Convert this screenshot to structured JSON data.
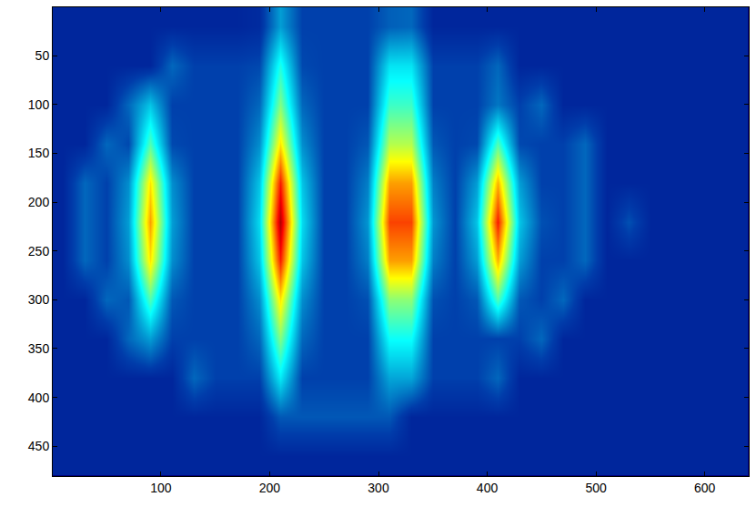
{
  "chart_data": {
    "type": "heatmap",
    "x": [
      10,
      30,
      50,
      70,
      90,
      110,
      130,
      150,
      170,
      190,
      210,
      230,
      250,
      270,
      290,
      310,
      330,
      350,
      370,
      390,
      410,
      430,
      450,
      470,
      490,
      510,
      530,
      550,
      570,
      590,
      610,
      630
    ],
    "y": [
      20,
      60,
      100,
      140,
      180,
      220,
      260,
      300,
      340,
      380,
      420,
      460
    ],
    "z": [
      [
        0.08,
        0.08,
        0.08,
        0.08,
        0.08,
        0.08,
        0.08,
        0.08,
        0.08,
        0.09,
        0.25,
        0.13,
        0.13,
        0.13,
        0.13,
        0.17,
        0.18,
        0.08,
        0.08,
        0.08,
        0.08,
        0.08,
        0.08,
        0.08,
        0.08,
        0.08,
        0.08,
        0.08,
        0.08,
        0.08,
        0.08,
        0.08
      ],
      [
        0.08,
        0.08,
        0.08,
        0.08,
        0.08,
        0.18,
        0.13,
        0.13,
        0.13,
        0.14,
        0.4,
        0.14,
        0.13,
        0.13,
        0.13,
        0.34,
        0.34,
        0.13,
        0.13,
        0.13,
        0.18,
        0.08,
        0.08,
        0.08,
        0.08,
        0.08,
        0.08,
        0.08,
        0.08,
        0.08,
        0.08,
        0.08
      ],
      [
        0.08,
        0.08,
        0.08,
        0.18,
        0.3,
        0.13,
        0.13,
        0.13,
        0.13,
        0.18,
        0.5,
        0.18,
        0.13,
        0.13,
        0.13,
        0.43,
        0.43,
        0.13,
        0.13,
        0.13,
        0.2,
        0.13,
        0.18,
        0.08,
        0.08,
        0.08,
        0.08,
        0.08,
        0.08,
        0.08,
        0.08,
        0.08
      ],
      [
        0.08,
        0.08,
        0.18,
        0.14,
        0.45,
        0.14,
        0.13,
        0.13,
        0.13,
        0.23,
        0.65,
        0.23,
        0.13,
        0.13,
        0.16,
        0.55,
        0.55,
        0.16,
        0.13,
        0.14,
        0.45,
        0.14,
        0.13,
        0.13,
        0.18,
        0.08,
        0.08,
        0.08,
        0.08,
        0.08,
        0.08,
        0.08
      ],
      [
        0.08,
        0.18,
        0.13,
        0.23,
        0.65,
        0.23,
        0.13,
        0.13,
        0.13,
        0.3,
        0.85,
        0.3,
        0.13,
        0.13,
        0.21,
        0.72,
        0.72,
        0.21,
        0.13,
        0.25,
        0.7,
        0.25,
        0.13,
        0.13,
        0.18,
        0.08,
        0.08,
        0.08,
        0.08,
        0.08,
        0.08,
        0.08
      ],
      [
        0.08,
        0.18,
        0.13,
        0.25,
        0.72,
        0.25,
        0.13,
        0.13,
        0.13,
        0.33,
        0.95,
        0.33,
        0.13,
        0.13,
        0.24,
        0.81,
        0.81,
        0.24,
        0.13,
        0.3,
        0.85,
        0.3,
        0.15,
        0.13,
        0.18,
        0.08,
        0.15,
        0.08,
        0.08,
        0.08,
        0.08,
        0.08
      ],
      [
        0.08,
        0.18,
        0.13,
        0.23,
        0.65,
        0.23,
        0.13,
        0.13,
        0.13,
        0.3,
        0.85,
        0.3,
        0.13,
        0.13,
        0.21,
        0.72,
        0.72,
        0.21,
        0.13,
        0.25,
        0.7,
        0.25,
        0.13,
        0.13,
        0.18,
        0.08,
        0.08,
        0.08,
        0.08,
        0.08,
        0.08,
        0.08
      ],
      [
        0.08,
        0.08,
        0.18,
        0.16,
        0.45,
        0.16,
        0.13,
        0.13,
        0.13,
        0.23,
        0.65,
        0.23,
        0.13,
        0.13,
        0.15,
        0.51,
        0.51,
        0.15,
        0.13,
        0.16,
        0.45,
        0.16,
        0.13,
        0.18,
        0.08,
        0.08,
        0.08,
        0.08,
        0.08,
        0.08,
        0.08,
        0.08
      ],
      [
        0.08,
        0.08,
        0.08,
        0.18,
        0.25,
        0.13,
        0.13,
        0.13,
        0.13,
        0.18,
        0.5,
        0.18,
        0.13,
        0.13,
        0.13,
        0.38,
        0.38,
        0.13,
        0.13,
        0.13,
        0.13,
        0.13,
        0.18,
        0.08,
        0.08,
        0.08,
        0.08,
        0.08,
        0.08,
        0.08,
        0.08,
        0.08
      ],
      [
        0.08,
        0.08,
        0.08,
        0.08,
        0.08,
        0.08,
        0.18,
        0.13,
        0.13,
        0.13,
        0.35,
        0.13,
        0.13,
        0.13,
        0.13,
        0.26,
        0.26,
        0.13,
        0.13,
        0.13,
        0.18,
        0.08,
        0.08,
        0.08,
        0.08,
        0.08,
        0.08,
        0.08,
        0.08,
        0.08,
        0.08,
        0.08
      ],
      [
        0.08,
        0.08,
        0.08,
        0.08,
        0.08,
        0.08,
        0.08,
        0.08,
        0.08,
        0.08,
        0.16,
        0.16,
        0.16,
        0.16,
        0.16,
        0.16,
        0.08,
        0.08,
        0.08,
        0.08,
        0.08,
        0.08,
        0.08,
        0.08,
        0.08,
        0.08,
        0.08,
        0.08,
        0.08,
        0.08,
        0.08,
        0.08
      ],
      [
        0.08,
        0.08,
        0.08,
        0.08,
        0.08,
        0.08,
        0.08,
        0.08,
        0.08,
        0.08,
        0.08,
        0.08,
        0.08,
        0.08,
        0.08,
        0.08,
        0.08,
        0.08,
        0.08,
        0.08,
        0.08,
        0.08,
        0.08,
        0.08,
        0.08,
        0.08,
        0.08,
        0.08,
        0.08,
        0.08,
        0.08,
        0.08
      ]
    ],
    "zlim": [
      0,
      1
    ],
    "xlim": [
      0.5,
      640.5
    ],
    "ylim": [
      480.5,
      0.5
    ],
    "xticks": [
      100,
      200,
      300,
      400,
      500,
      600
    ],
    "yticks": [
      50,
      100,
      150,
      200,
      250,
      300,
      350,
      400,
      450
    ]
  }
}
